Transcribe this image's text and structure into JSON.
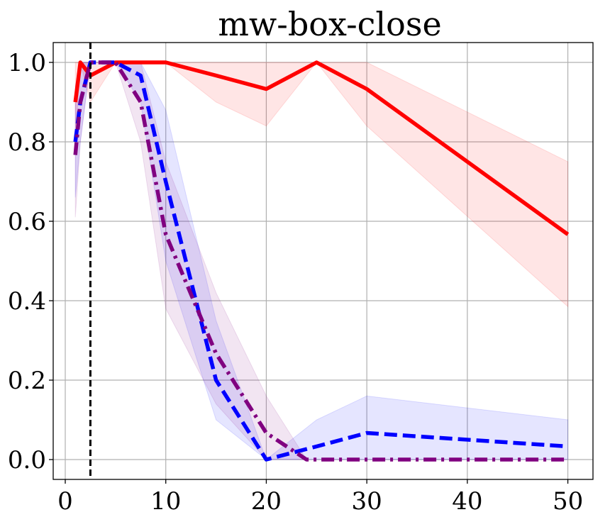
{
  "chart_data": {
    "type": "line",
    "title": "mw-box-close",
    "xlabel": "",
    "ylabel": "",
    "xlim": [
      -1.2,
      52.5
    ],
    "ylim": [
      -0.05,
      1.05
    ],
    "xticks": [
      0,
      10,
      20,
      30,
      40,
      50
    ],
    "yticks": [
      0.0,
      0.2,
      0.4,
      0.6,
      0.8,
      1.0
    ],
    "xtick_labels": [
      "0",
      "10",
      "20",
      "30",
      "40",
      "50"
    ],
    "ytick_labels": [
      "0.0",
      "0.2",
      "0.4",
      "0.6",
      "0.8",
      "1.0"
    ],
    "grid": true,
    "vline": {
      "x": 2.5,
      "color": "#000000",
      "style": "dashed"
    },
    "series": [
      {
        "color": "#ff0000",
        "style": "solid",
        "x": [
          1,
          1.5,
          2.5,
          5,
          7.5,
          10,
          15,
          20,
          25,
          30,
          50
        ],
        "y": [
          0.9,
          1.0,
          0.967,
          1.0,
          1.0,
          1.0,
          0.967,
          0.933,
          1.0,
          0.933,
          0.567
        ],
        "lower": [
          0.8,
          1.0,
          0.9,
          1.0,
          1.0,
          1.0,
          0.9,
          0.84,
          1.0,
          0.84,
          0.385
        ],
        "upper": [
          1.0,
          1.0,
          1.0,
          1.0,
          1.0,
          1.0,
          1.0,
          1.0,
          1.0,
          1.0,
          0.75
        ]
      },
      {
        "color": "#0000ff",
        "style": "dashed",
        "x": [
          1,
          1.5,
          2.5,
          5,
          7.5,
          10,
          15,
          20,
          25,
          30,
          50
        ],
        "y": [
          0.8,
          0.9,
          1.0,
          1.0,
          0.967,
          0.7,
          0.2,
          0.0,
          0.033,
          0.067,
          0.033
        ],
        "lower": [
          0.66,
          0.8,
          1.0,
          1.0,
          0.9,
          0.5,
          0.1,
          0.0,
          0.0,
          0.0,
          0.0
        ],
        "upper": [
          0.94,
          1.0,
          1.0,
          1.0,
          1.0,
          0.88,
          0.35,
          0.0,
          0.1,
          0.16,
          0.1
        ]
      },
      {
        "color": "#800080",
        "style": "dashdot",
        "x": [
          1,
          1.5,
          2.5,
          5,
          7.5,
          10,
          15,
          20,
          24,
          25,
          50
        ],
        "y": [
          0.767,
          0.9,
          1.0,
          1.0,
          0.9,
          0.567,
          0.267,
          0.067,
          0.0,
          0.0,
          0.0
        ],
        "lower": [
          0.61,
          0.8,
          1.0,
          1.0,
          0.8,
          0.38,
          0.14,
          0.0,
          0.0,
          0.0,
          0.0
        ],
        "upper": [
          0.92,
          1.0,
          1.0,
          1.0,
          1.0,
          0.75,
          0.42,
          0.16,
          0.0,
          0.0,
          0.0
        ]
      }
    ]
  }
}
